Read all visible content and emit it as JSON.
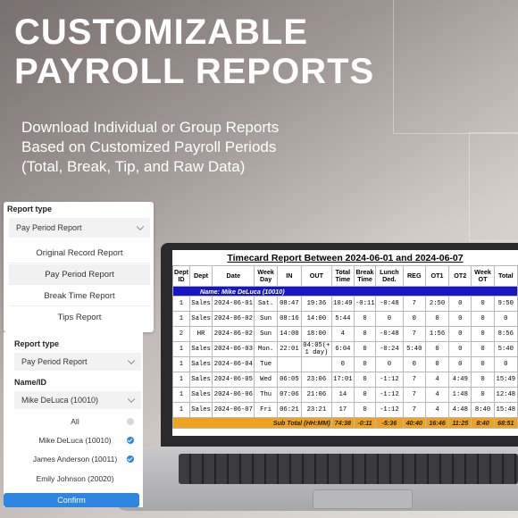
{
  "hero": {
    "title_line1": "CUSTOMIZABLE",
    "title_line2": "PAYROLL REPORTS",
    "sub_line1": "Download Individual or Group Reports",
    "sub_line2": "Based on Customized Payroll Periods",
    "sub_line3": "(Total, Break, Tip, and Raw Data)"
  },
  "report_type_panel": {
    "label": "Report type",
    "selected": "Pay Period Report",
    "options": [
      "Original Record Report",
      "Pay Period Report",
      "Break Time Report",
      "Tips Report"
    ]
  },
  "filter_panel": {
    "report_type_label": "Report type",
    "report_type_value": "Pay Period Report",
    "name_label": "Name/ID",
    "name_value": "Mike DeLuca (10010)",
    "people": [
      {
        "label": "All",
        "checked": false
      },
      {
        "label": "Mike DeLuca (10010)",
        "checked": true
      },
      {
        "label": "James Anderson (10011)",
        "checked": true
      },
      {
        "label": "Emily Johnson (20020)",
        "checked": false
      }
    ],
    "confirm_label": "Confirm"
  },
  "timecard": {
    "title": "Timecard Report Between 2024-06-01 and 2024-06-07",
    "headers": [
      "Dept ID",
      "Dept",
      "Date",
      "Week Day",
      "IN",
      "OUT",
      "Total Time",
      "Break Time",
      "Lunch Ded.",
      "REG",
      "OT1",
      "OT2",
      "Week OT",
      "Total"
    ],
    "employee_name": "Name: Mike DeLuca (10010)",
    "rows": [
      [
        "1",
        "Sales",
        "2024-06-01",
        "Sat.",
        "08:47",
        "19:36",
        "10:49",
        "-0:11",
        "-0:48",
        "7",
        "2:50",
        "0",
        "0",
        "9:50"
      ],
      [
        "1",
        "Sales",
        "2024-06-02",
        "Sun",
        "08:16",
        "14:00",
        "5:44",
        "0",
        "0",
        "0",
        "0",
        "0",
        "0",
        "0"
      ],
      [
        "2",
        "HR",
        "2024-06-02",
        "Sun",
        "14:00",
        "18:00",
        "4",
        "0",
        "-0:48",
        "7",
        "1:56",
        "0",
        "0",
        "8:56"
      ],
      [
        "1",
        "Sales",
        "2024-06-03",
        "Mon.",
        "22:01",
        "04:05(+ 1 day)",
        "6:04",
        "0",
        "-0:24",
        "5:40",
        "0",
        "0",
        "0",
        "5:40"
      ],
      [
        "1",
        "Sales",
        "2024-06-04",
        "Tue",
        "",
        "",
        "0",
        "0",
        "0",
        "0",
        "0",
        "0",
        "0",
        "0"
      ],
      [
        "1",
        "Sales",
        "2024-06-05",
        "Wed",
        "06:05",
        "23:06",
        "17:01",
        "0",
        "-1:12",
        "7",
        "4",
        "4:49",
        "0",
        "15:49"
      ],
      [
        "1",
        "Sales",
        "2024-06-06",
        "Thu",
        "07:06",
        "21:06",
        "14",
        "0",
        "-1:12",
        "7",
        "4",
        "1:48",
        "0",
        "12:48"
      ],
      [
        "1",
        "Sales",
        "2024-06-07",
        "Fri",
        "06:21",
        "23:21",
        "17",
        "0",
        "-1:12",
        "7",
        "4",
        "4:48",
        "8:40",
        "15:48"
      ]
    ],
    "subtotal_label": "Sub Total (HH:MM)",
    "subtotals": [
      "74:38",
      "-0:11",
      "-5:36",
      "40:40",
      "16:46",
      "11:25",
      "8:40",
      "68:51"
    ]
  }
}
